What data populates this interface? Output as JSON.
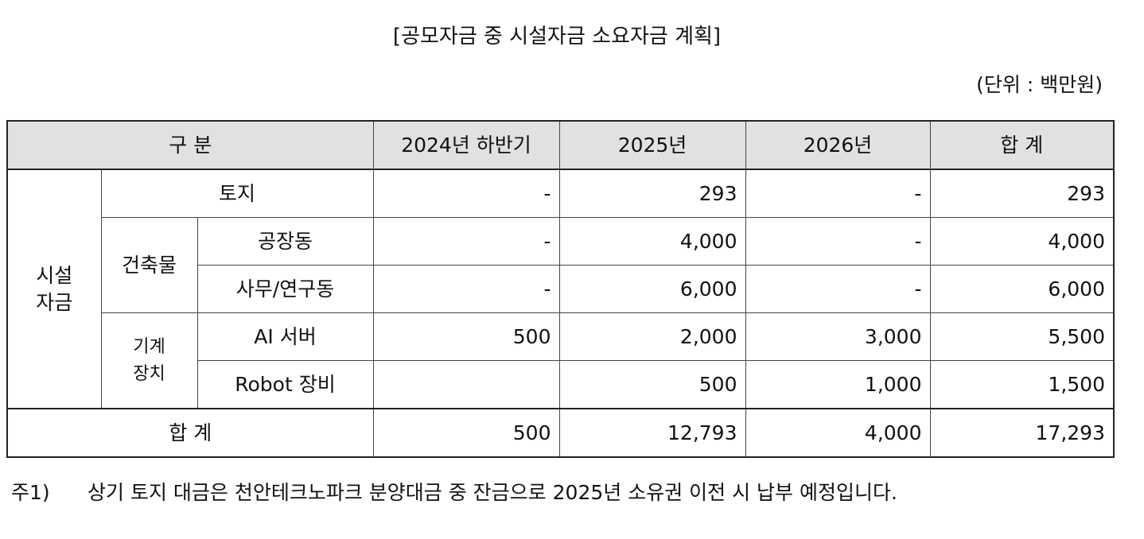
{
  "title": "[공모자금 중 시설자금 소요자금 계획]",
  "unit": "(단위 : 백만원)",
  "table": {
    "header": {
      "category": "구 분",
      "col_2024h2": "2024년 하반기",
      "col_2025": "2025년",
      "col_2026": "2026년",
      "col_total": "합 계"
    },
    "group": {
      "line1": "시설",
      "line2": "자금"
    },
    "sub_building": "건축물",
    "sub_machine": {
      "line1": "기계",
      "line2": "장치"
    },
    "rows": [
      {
        "label": "토지",
        "y2024h2": "-",
        "y2025": "293",
        "y2026": "-",
        "total": "293"
      },
      {
        "label": "공장동",
        "y2024h2": "-",
        "y2025": "4,000",
        "y2026": "-",
        "total": "4,000"
      },
      {
        "label": "사무/연구동",
        "y2024h2": "-",
        "y2025": "6,000",
        "y2026": "-",
        "total": "6,000"
      },
      {
        "label": "AI 서버",
        "y2024h2": "500",
        "y2025": "2,000",
        "y2026": "3,000",
        "total": "5,500"
      },
      {
        "label": "Robot 장비",
        "y2024h2": "",
        "y2025": "500",
        "y2026": "1,000",
        "total": "1,500"
      }
    ],
    "total_row": {
      "label": "합 계",
      "y2024h2": "500",
      "y2025": "12,793",
      "y2026": "4,000",
      "total": "17,293"
    }
  },
  "note": {
    "marker": "주1)",
    "text": "상기 토지 대금은 천안테크노파크 분양대금 중 잔금으로 2025년 소유권 이전 시 납부 예정입니다."
  }
}
